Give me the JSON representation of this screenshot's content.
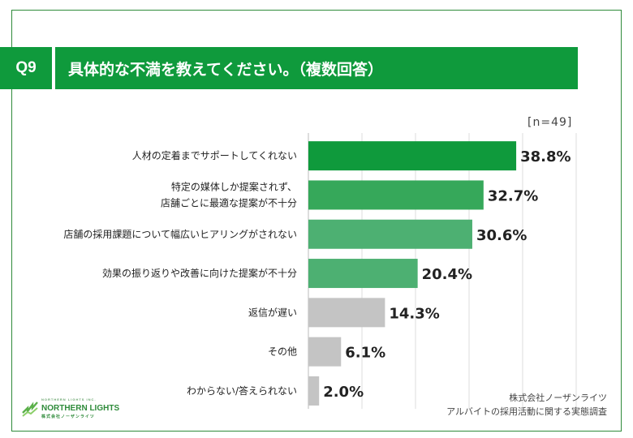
{
  "header": {
    "question_no": "Q9",
    "question": "具体的な不満を教えてください。（複数回答）"
  },
  "sample_size": "[n=49]",
  "footer": {
    "company": "株式会社ノーザンライツ",
    "survey": "アルバイトの採用活動に関する実態調査"
  },
  "logo": {
    "name": "NORTHERN LIGHTS",
    "sub": "株式会社ノーザンライツ",
    "tagline": "NORTHERN LIGHTS INC."
  },
  "chart_data": {
    "type": "bar",
    "orientation": "horizontal",
    "categories": [
      [
        "人材の定着までサポートしてくれない"
      ],
      [
        "特定の媒体しか提案されず、",
        "店舗ごとに最適な提案が不十分"
      ],
      [
        "店舗の採用課題について幅広いヒアリングがされない"
      ],
      [
        "効果の振り返りや改善に向けた提案が不十分"
      ],
      [
        "返信が遅い"
      ],
      [
        "その他"
      ],
      [
        "わからない/答えられない"
      ]
    ],
    "values": [
      38.8,
      32.7,
      30.6,
      20.4,
      14.3,
      6.1,
      2.0
    ],
    "value_labels": [
      "38.8%",
      "32.7%",
      "30.6%",
      "20.4%",
      "14.3%",
      "6.1%",
      "2.0%"
    ],
    "bar_colors": [
      "#0f9a3c",
      "#36a85a",
      "#4db072",
      "#4db072",
      "#c4c4c4",
      "#c4c4c4",
      "#c4c4c4"
    ],
    "xlim": [
      0,
      50
    ],
    "grid": true
  }
}
